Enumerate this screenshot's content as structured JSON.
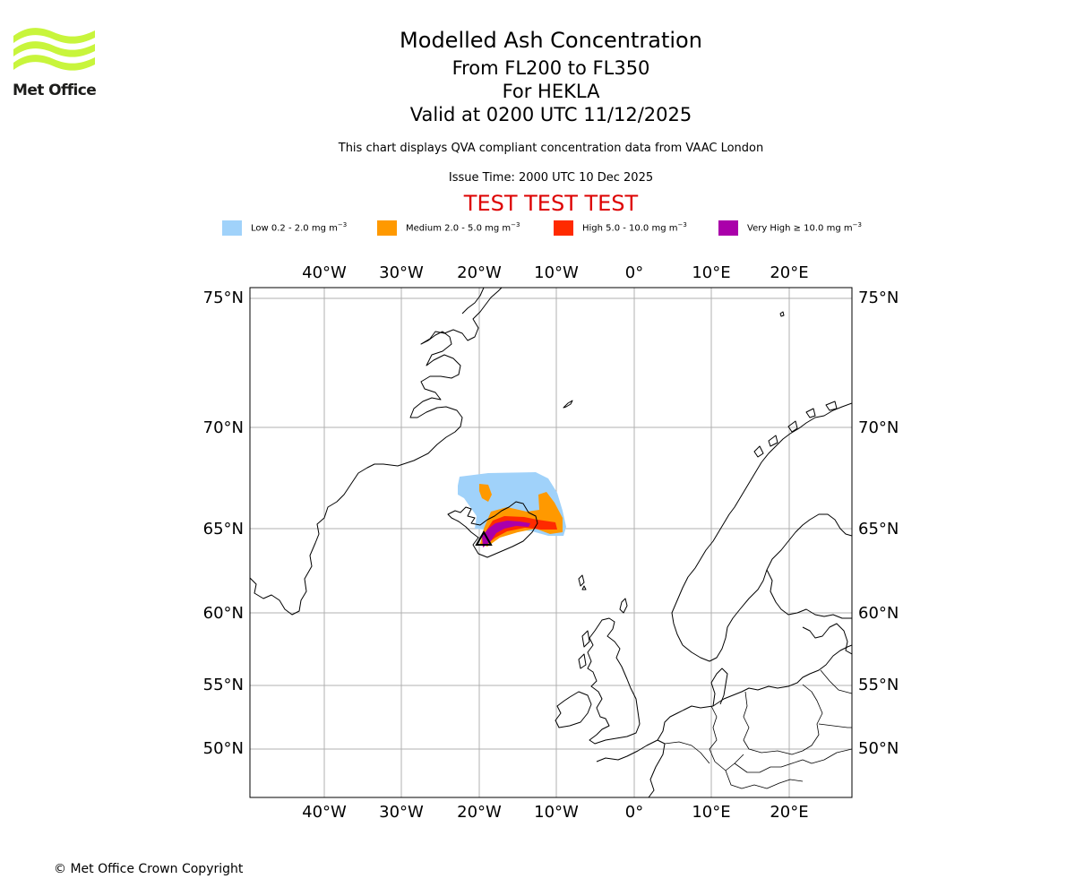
{
  "logo": {
    "icon": "met-office-waves-icon",
    "text": "Met Office",
    "color": "#c8f53c"
  },
  "header": {
    "title": "Modelled Ash Concentration",
    "flight_levels": "From FL200 to FL350",
    "volcano": "For HEKLA",
    "valid_time": "Valid at 0200 UTC 11/12/2025",
    "description": "This chart displays QVA compliant concentration data from VAAC London",
    "issue_time": "Issue Time: 2000 UTC 10 Dec 2025",
    "test_banner": "TEST TEST TEST"
  },
  "legend": [
    {
      "label": "Low 0.2 - 2.0 mg m",
      "exp": "−3",
      "color": "#a0d2fa"
    },
    {
      "label": "Medium 2.0 - 5.0 mg m",
      "exp": "−3",
      "color": "#ff9900"
    },
    {
      "label": "High 5.0 - 10.0 mg m",
      "exp": "−3",
      "color": "#ff2a00"
    },
    {
      "label": "Very High ≥ 10.0 mg m",
      "exp": "−3",
      "color": "#aa00aa"
    }
  ],
  "map": {
    "lon_ticks": [
      "40°W",
      "30°W",
      "20°W",
      "10°W",
      "0°",
      "10°E",
      "20°E"
    ],
    "lat_ticks": [
      "75°N",
      "70°N",
      "65°N",
      "60°N",
      "55°N",
      "50°N"
    ],
    "volcano_marker": "triangle-marker-icon"
  },
  "footer": {
    "copyright": "© Met Office Crown Copyright"
  }
}
